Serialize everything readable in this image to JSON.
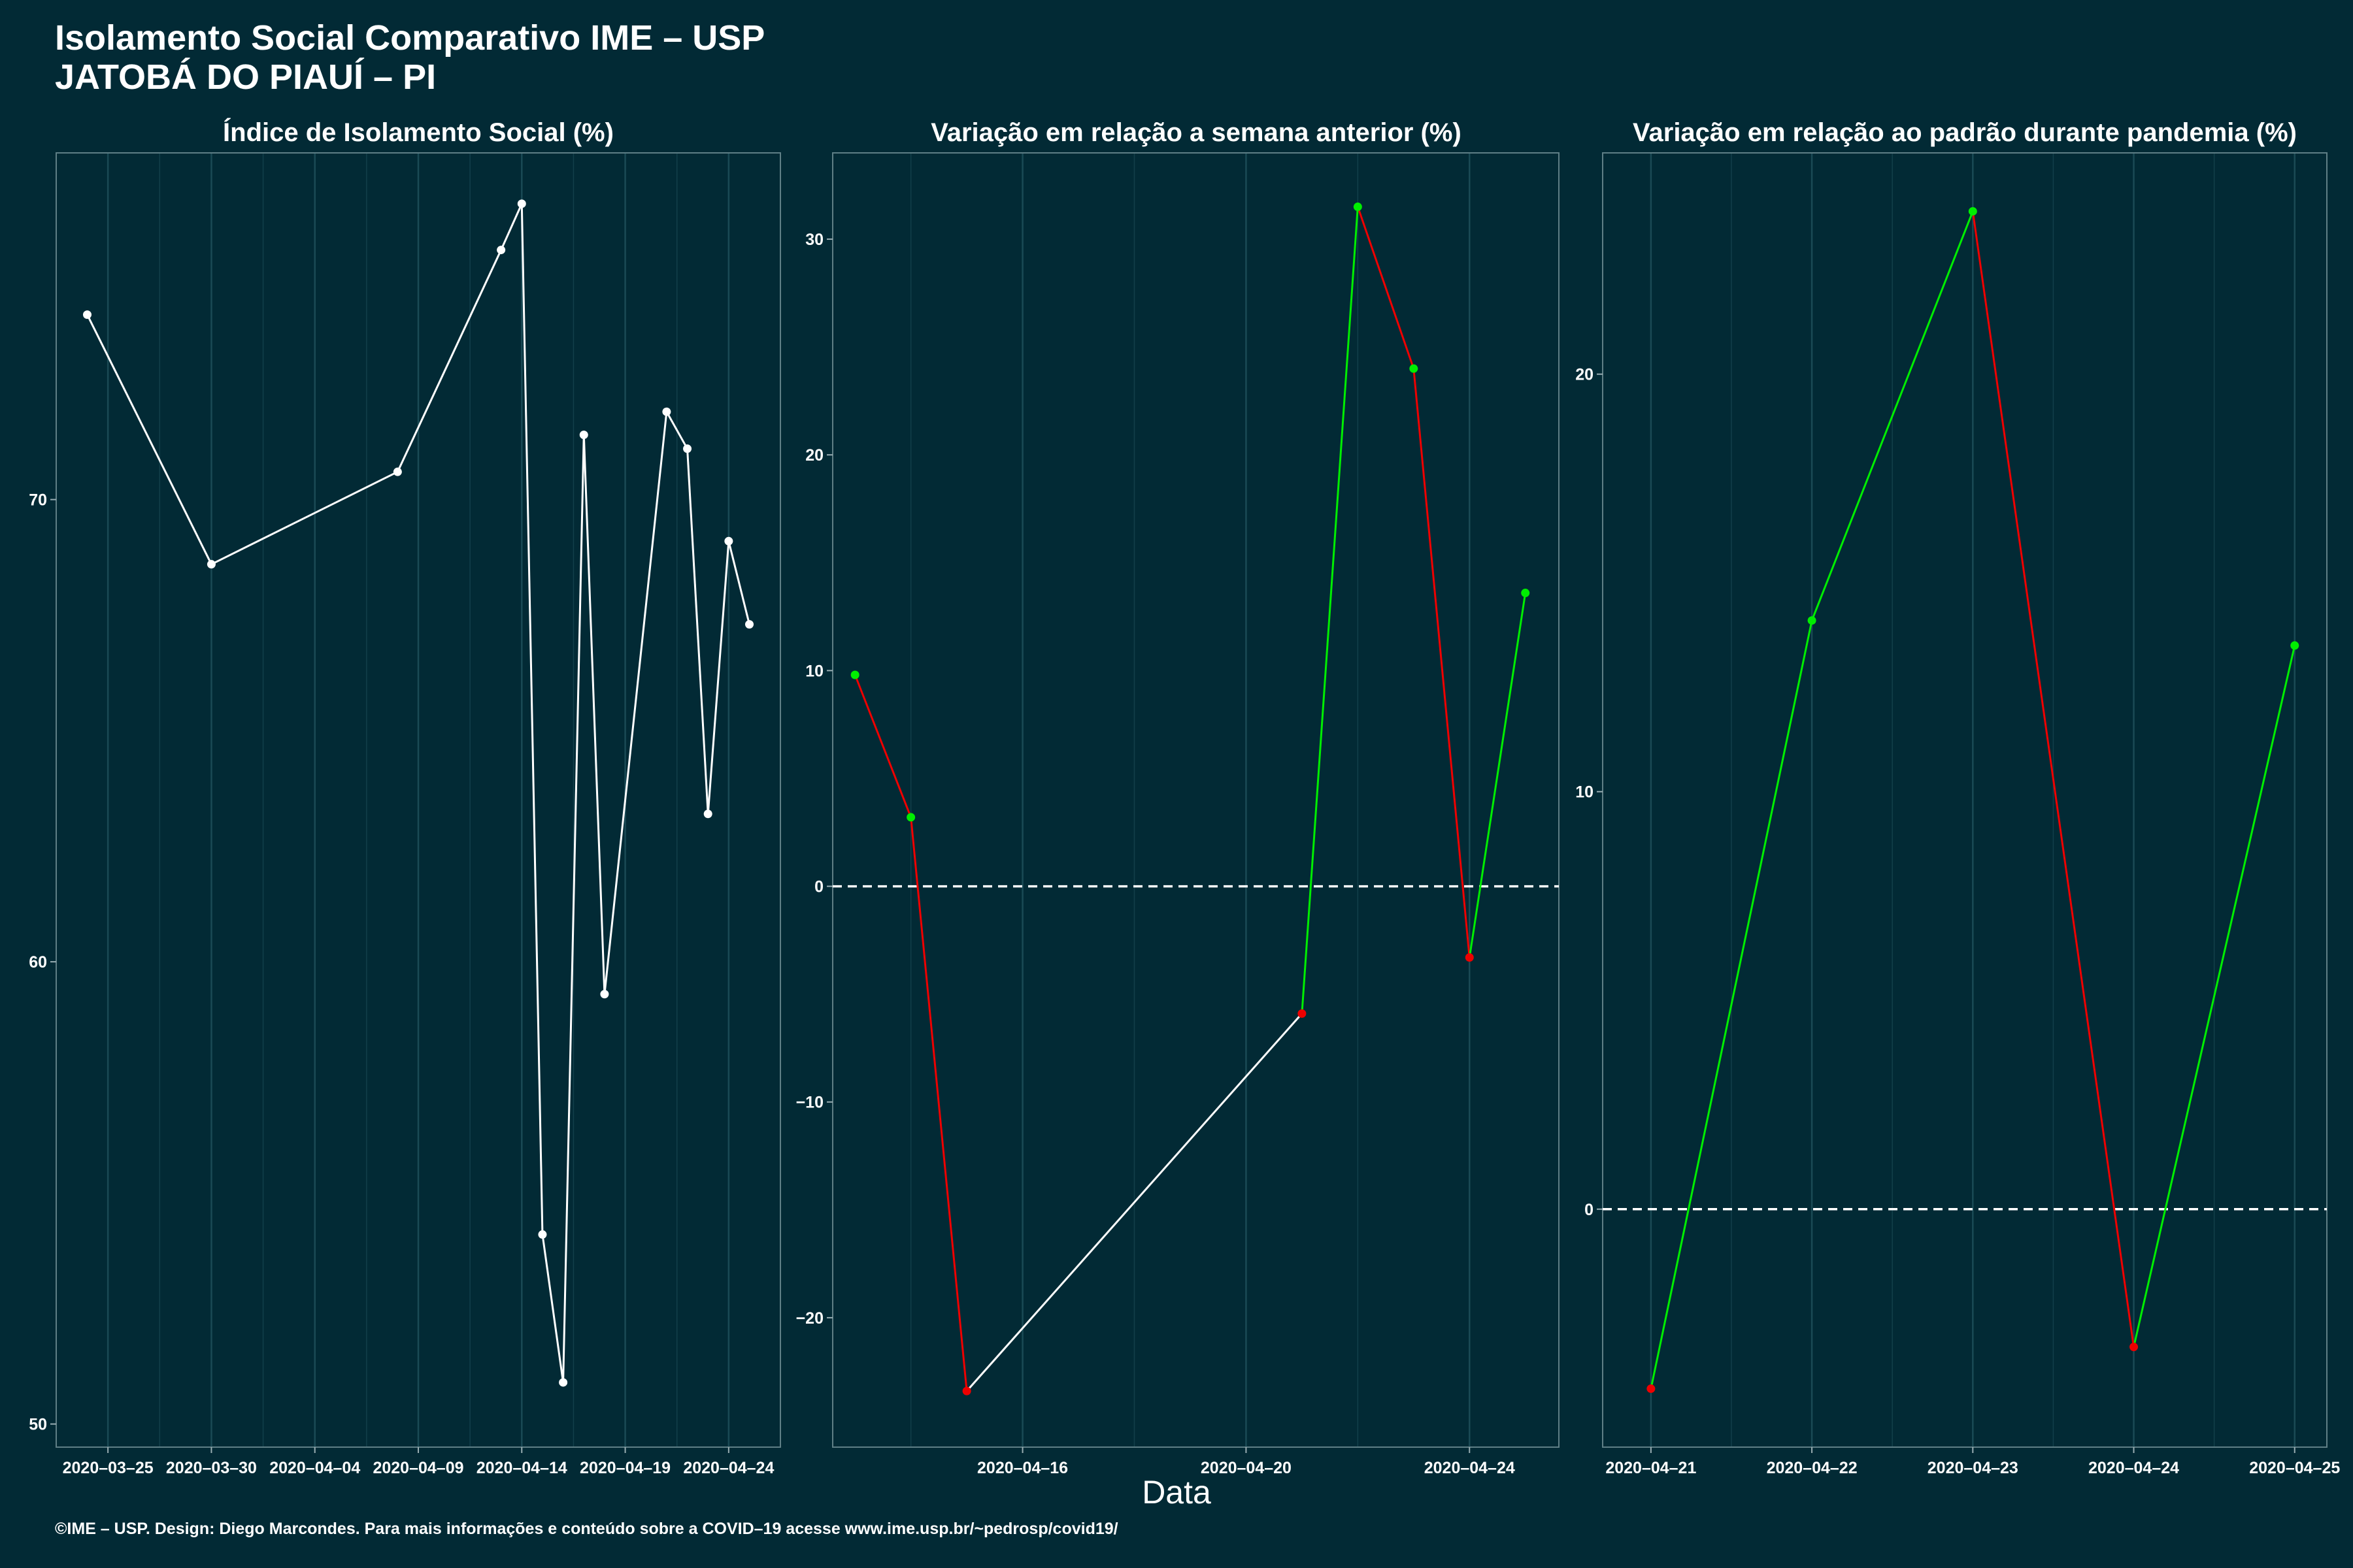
{
  "header": {
    "title_line1": "Isolamento Social Comparativo IME – USP",
    "title_line2": "JATOBÁ DO PIAUÍ – PI"
  },
  "x_axis_label": "Data",
  "footer": "©IME – USP. Design: Diego Marcondes. Para mais informações e conteúdo sobre a COVID–19 acesse www.ime.usp.br/~pedrosp/covid19/",
  "colors": {
    "background": "#022a35",
    "line_neutral": "#ffffff",
    "increase": "#00ee00",
    "decrease": "#ee0000",
    "reference_line": "#ffffff"
  },
  "chart_data": [
    {
      "type": "line",
      "title": "Índice de Isolamento Social (%)",
      "x_ticks": [
        "2020–03–25",
        "2020–03–30",
        "2020–04–04",
        "2020–04–09",
        "2020–04–14",
        "2020–04–19",
        "2020–04–24"
      ],
      "y_ticks": [
        "50",
        "60",
        "70"
      ],
      "series": [
        {
          "x": [
            "2020-03-24",
            "2020-03-30",
            "2020-04-08",
            "2020-04-13",
            "2020-04-14",
            "2020-04-15",
            "2020-04-16",
            "2020-04-17",
            "2020-04-18",
            "2020-04-21",
            "2020-04-22",
            "2020-04-23",
            "2020-04-24",
            "2020-04-25"
          ],
          "y": [
            74.0,
            68.6,
            70.6,
            75.4,
            76.4,
            54.1,
            50.9,
            71.4,
            59.3,
            71.9,
            71.1,
            63.2,
            69.1,
            67.3
          ]
        }
      ],
      "ylim": [
        49.5,
        77.5
      ],
      "xlim": [
        "2020-03-22.5",
        "2020-04-26.5"
      ]
    },
    {
      "type": "line",
      "title": "Variação em relação a semana anterior (%)",
      "x_ticks": [
        "2020–04–16",
        "2020–04–20",
        "2020–04–24"
      ],
      "y_ticks": [
        "−20",
        "−10",
        "0",
        "10",
        "20",
        "30"
      ],
      "reference_line": 0,
      "series": [
        {
          "x": [
            "2020-04-13",
            "2020-04-14",
            "2020-04-15",
            "2020-04-21",
            "2020-04-22",
            "2020-04-23",
            "2020-04-24",
            "2020-04-25"
          ],
          "y": [
            9.8,
            3.2,
            -23.4,
            -5.9,
            31.5,
            24.0,
            -3.3,
            13.6
          ]
        }
      ],
      "ylim": [
        -26,
        34
      ],
      "xlim": [
        "2020-04-12.6",
        "2020-04-25.6"
      ]
    },
    {
      "type": "line",
      "title": "Variação em relação ao padrão durante pandemia (%)",
      "x_ticks": [
        "2020–04–21",
        "2020–04–22",
        "2020–04–23",
        "2020–04–24",
        "2020–04–25"
      ],
      "y_ticks": [
        "0",
        "10",
        "20"
      ],
      "reference_line": 0,
      "series": [
        {
          "x": [
            "2020-04-21",
            "2020-04-22",
            "2020-04-23",
            "2020-04-24",
            "2020-04-25"
          ],
          "y": [
            -4.3,
            14.1,
            23.9,
            -3.3,
            13.5
          ]
        }
      ],
      "ylim": [
        -5.7,
        25.3
      ],
      "xlim": [
        "2020-04-20.7",
        "2020-04-25.2"
      ]
    }
  ]
}
